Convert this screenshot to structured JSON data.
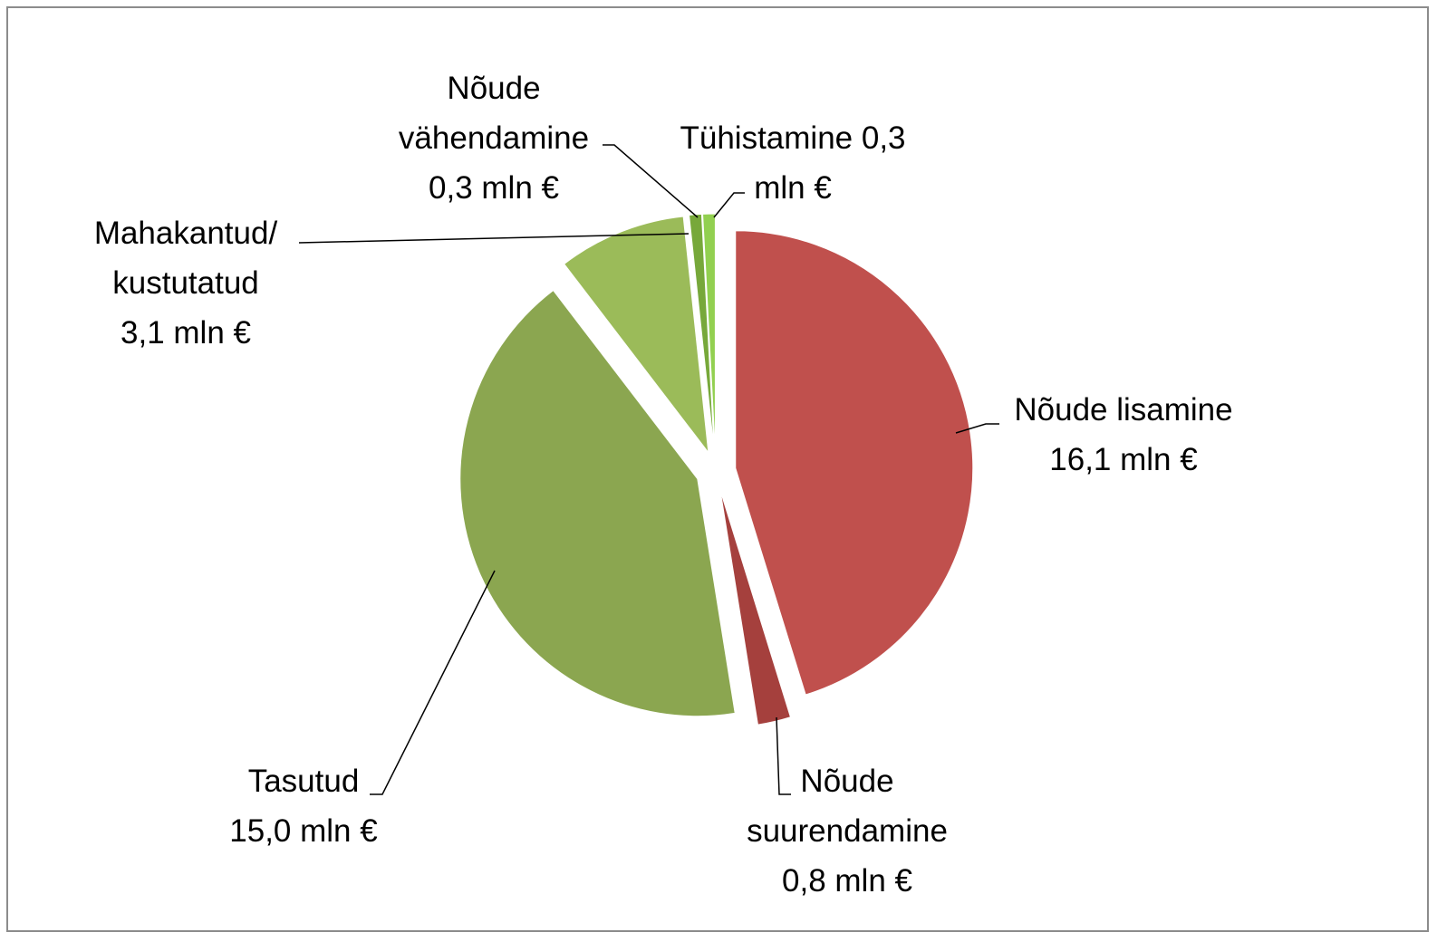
{
  "chart_data": {
    "type": "pie",
    "categories": [
      "Nõude lisamine",
      "Nõude suurendamine",
      "Tasutud",
      "Mahakantud/ kustutatud",
      "Nõude vähendamine",
      "Tühistamine"
    ],
    "values": [
      16.1,
      0.8,
      15.0,
      3.1,
      0.3,
      0.3
    ],
    "value_labels": [
      "16,1 mln €",
      "0,8 mln €",
      "15,0 mln €",
      "3,1 mln €",
      "0,3 mln €",
      "0,3 mln €"
    ],
    "colors": [
      "#c0504d",
      "#a5403d",
      "#8ba650",
      "#9bbb59",
      "#77a83a",
      "#92d050"
    ]
  }
}
